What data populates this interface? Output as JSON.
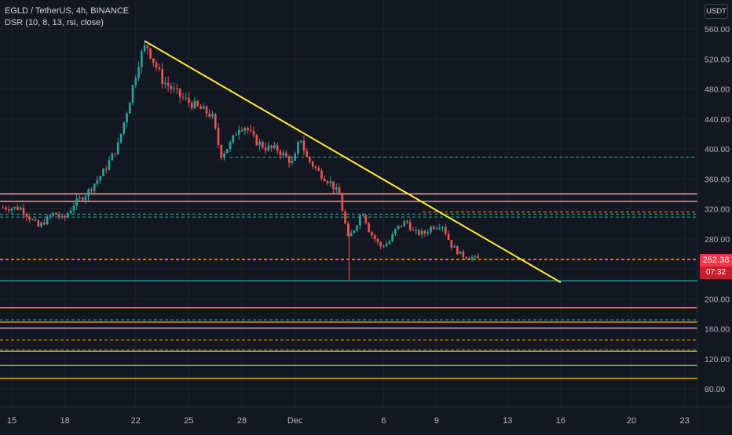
{
  "header": {
    "symbol": "EGLD / TetherUS, 4h, BINANCE",
    "indicator": "DSR (10, 8, 13, rsi, close)"
  },
  "price_axis": {
    "currency": "USDT",
    "last_price": "252.38",
    "countdown": "07:32"
  },
  "colors": {
    "background": "#131722",
    "up_candle": "#26a69a",
    "down_candle": "#ef5350",
    "trendline": "#ffeb3b",
    "level_orange": "#ff9800",
    "level_pink": "#f7a8b0",
    "level_teal_dash": "#26a69a",
    "current_price": "#ff9800",
    "price_tag": "#f23645"
  },
  "chart_data": {
    "type": "candlestick",
    "symbol": "EGLD / TetherUS",
    "timeframe": "4h",
    "exchange": "BINANCE",
    "ylim": [
      60,
      580
    ],
    "y_ticks": [
      80,
      120,
      160,
      200,
      240,
      280,
      320,
      360,
      400,
      440,
      480,
      520,
      560
    ],
    "x_tick_labels": [
      {
        "label": "15",
        "day": 15
      },
      {
        "label": "18",
        "day": 18
      },
      {
        "label": "22",
        "day": 22
      },
      {
        "label": "25",
        "day": 25
      },
      {
        "label": "28",
        "day": 28
      },
      {
        "label": "Dec",
        "day": 31
      },
      {
        "label": "6",
        "day": 36
      },
      {
        "label": "9",
        "day": 39
      },
      {
        "label": "13",
        "day": 43
      },
      {
        "label": "16",
        "day": 46
      },
      {
        "label": "20",
        "day": 50
      },
      {
        "label": "23",
        "day": 53
      }
    ],
    "xlim_days": [
      14.5,
      54
    ],
    "last_day": 41.4,
    "price_path": [
      [
        14.5,
        322
      ],
      [
        15.5,
        321
      ],
      [
        16.5,
        296
      ],
      [
        17.4,
        315
      ],
      [
        17.9,
        305
      ],
      [
        18.5,
        326
      ],
      [
        19.2,
        340
      ],
      [
        20.2,
        370
      ],
      [
        21.0,
        405
      ],
      [
        21.6,
        460
      ],
      [
        22.2,
        520
      ],
      [
        22.6,
        540
      ],
      [
        23.0,
        518
      ],
      [
        23.5,
        492
      ],
      [
        24.5,
        470
      ],
      [
        25.5,
        455
      ],
      [
        26.3,
        445
      ],
      [
        26.8,
        392
      ],
      [
        27.4,
        408
      ],
      [
        27.8,
        430
      ],
      [
        28.2,
        430
      ],
      [
        28.7,
        412
      ],
      [
        29.3,
        402
      ],
      [
        30.0,
        399
      ],
      [
        30.6,
        387
      ],
      [
        30.9,
        380
      ],
      [
        31.3,
        417
      ],
      [
        31.6,
        390
      ],
      [
        32.3,
        370
      ],
      [
        33.0,
        355
      ],
      [
        33.5,
        338
      ],
      [
        34.0,
        280
      ],
      [
        34.4,
        296
      ],
      [
        34.8,
        318
      ],
      [
        35.2,
        290
      ],
      [
        35.8,
        270
      ],
      [
        36.3,
        275
      ],
      [
        36.7,
        293
      ],
      [
        37.3,
        304
      ],
      [
        37.7,
        288
      ],
      [
        38.3,
        287
      ],
      [
        38.7,
        296
      ],
      [
        39.3,
        300
      ],
      [
        39.8,
        272
      ],
      [
        40.4,
        258
      ],
      [
        41.0,
        255
      ],
      [
        41.4,
        252.38
      ]
    ],
    "trendline": {
      "from": [
        22.5,
        544
      ],
      "to": [
        46.0,
        222
      ]
    },
    "current_price": 252.38,
    "horizontal_levels": [
      {
        "price": 340,
        "style": "solid",
        "color": "#f7a8b0"
      },
      {
        "price": 330,
        "style": "solid",
        "color": "#f7a8b0"
      },
      {
        "price": 316,
        "style": "dashed",
        "color": "#ff9800"
      },
      {
        "price": 313,
        "style": "dashed",
        "color": "#26a69a"
      },
      {
        "price": 309,
        "style": "dashed",
        "color": "#26a69a"
      },
      {
        "price": 389,
        "style": "dashed",
        "color": "#26a69a"
      },
      {
        "price": 224,
        "style": "solid",
        "color": "#26a69a"
      },
      {
        "price": 188,
        "style": "solid",
        "color": "#ff9800"
      },
      {
        "price": 172,
        "style": "dashed",
        "color": "#26a69a"
      },
      {
        "price": 169,
        "style": "solid",
        "color": "#ff9800"
      },
      {
        "price": 161,
        "style": "solid",
        "color": "#f7a8b0"
      },
      {
        "price": 145,
        "style": "dashed",
        "color": "#ff9800"
      },
      {
        "price": 132,
        "style": "dashed",
        "color": "#26a69a"
      },
      {
        "price": 130,
        "style": "solid",
        "color": "#ff9800"
      },
      {
        "price": 111,
        "style": "solid",
        "color": "#ff9800"
      },
      {
        "price": 94,
        "style": "solid",
        "color": "#ff9800"
      }
    ],
    "grid": true
  }
}
